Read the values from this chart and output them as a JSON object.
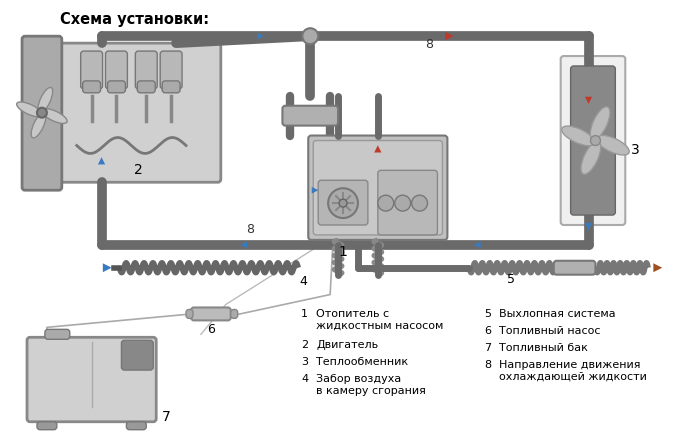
{
  "title": "Схема установки:",
  "bg_color": "#f0f0f0",
  "white": "#ffffff",
  "pipe_color": "#6a6a6a",
  "pipe_lw": 7,
  "arrow_blue": "#3a7abf",
  "arrow_red": "#c0392b",
  "arrow_brown": "#a05020",
  "grey_box": "#c8c8c8",
  "grey_dark": "#888888",
  "legend_left": [
    [
      "1",
      "Отопитель с\nжидкостным насосом"
    ],
    [
      "2",
      "Двигатель"
    ],
    [
      "3",
      "Теплообменник"
    ],
    [
      "4",
      "Забор воздуха\nв камеру сгорания"
    ]
  ],
  "legend_right": [
    [
      "5",
      "Выхлопная система"
    ],
    [
      "6",
      "Топливный насос"
    ],
    [
      "7",
      "Топливный бак"
    ],
    [
      "8",
      "Направление движения\nохлаждающей жидкости"
    ]
  ],
  "figsize": [
    7.0,
    4.47
  ],
  "dpi": 100
}
